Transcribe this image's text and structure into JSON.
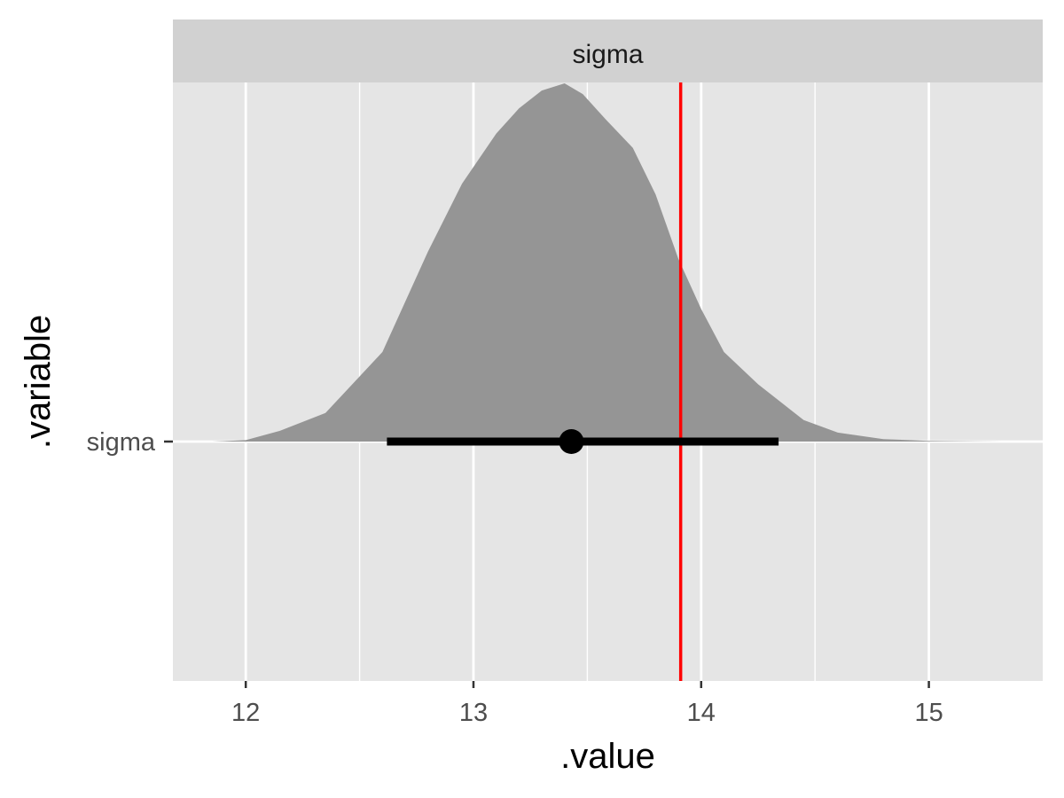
{
  "chart_data": {
    "type": "area",
    "facet_label": "sigma",
    "xlabel": ".value",
    "ylabel": ".variable",
    "xlim": [
      11.68,
      15.5
    ],
    "x_ticks": [
      12,
      13,
      14,
      15
    ],
    "x_tick_labels": [
      "12",
      "13",
      "14",
      "15"
    ],
    "y_categories": [
      "sigma"
    ],
    "grid": true,
    "density": {
      "name": "sigma",
      "x": [
        11.85,
        12.0,
        12.15,
        12.35,
        12.6,
        12.8,
        12.95,
        13.1,
        13.2,
        13.3,
        13.4,
        13.48,
        13.58,
        13.7,
        13.8,
        13.9,
        14.0,
        14.1,
        14.25,
        14.45,
        14.6,
        14.8,
        15.0,
        15.2,
        15.33
      ],
      "y": [
        0.0,
        0.004,
        0.03,
        0.08,
        0.25,
        0.53,
        0.72,
        0.86,
        0.93,
        0.98,
        1.0,
        0.97,
        0.9,
        0.82,
        0.69,
        0.51,
        0.37,
        0.25,
        0.16,
        0.06,
        0.025,
        0.007,
        0.002,
        0.0005,
        0.0
      ]
    },
    "point_estimate": 13.43,
    "interval": [
      12.62,
      14.34
    ],
    "reference_line": 13.91,
    "colors": {
      "panel_bg": "#e5e5e5",
      "strip_bg": "#d1d1d1",
      "grid": "#ffffff",
      "density_fill": "#959595",
      "interval": "#000000",
      "reference": "#ff0000",
      "axis_text": "#4d4d4d",
      "axis_title": "#000000"
    }
  }
}
